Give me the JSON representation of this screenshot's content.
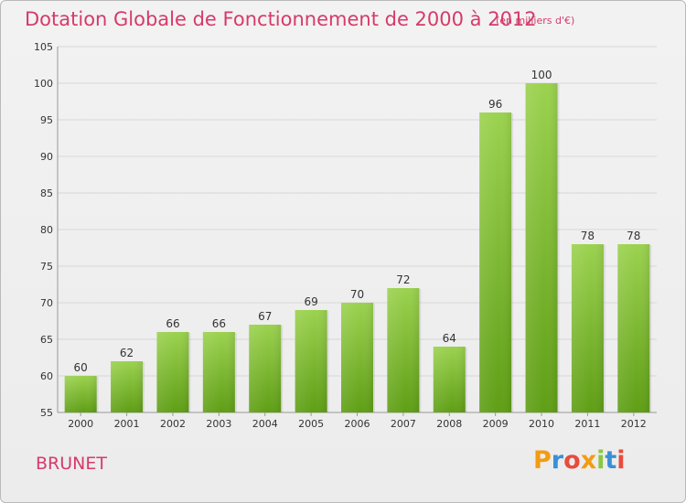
{
  "header": {
    "title": "Dotation Globale de Fonctionnement de 2000 à 2012",
    "unit": "(en milliers d'€)"
  },
  "footer": {
    "commune": "BRUNET",
    "logo_text": "Proxiti",
    "logo_colors": [
      "#f39c12",
      "#3a8fd6",
      "#e74c3c",
      "#f39c12",
      "#8cc63f",
      "#3a8fd6",
      "#e74c3c"
    ]
  },
  "colors": {
    "accent": "#d63a6b",
    "bar_top": "#9bd24f",
    "bar_bottom": "#5f9e15",
    "grid": "#d7d7d7",
    "axis_text": "#333333"
  },
  "chart_data": {
    "type": "bar",
    "categories": [
      "2000",
      "2001",
      "2002",
      "2003",
      "2004",
      "2005",
      "2006",
      "2007",
      "2008",
      "2009",
      "2010",
      "2011",
      "2012"
    ],
    "values": [
      60,
      62,
      66,
      66,
      67,
      69,
      70,
      72,
      64,
      96,
      100,
      78,
      78
    ],
    "ylim": [
      55,
      105
    ],
    "yticks": [
      55,
      60,
      65,
      70,
      75,
      80,
      85,
      90,
      95,
      100,
      105
    ],
    "grid": true,
    "data_labels": true
  }
}
